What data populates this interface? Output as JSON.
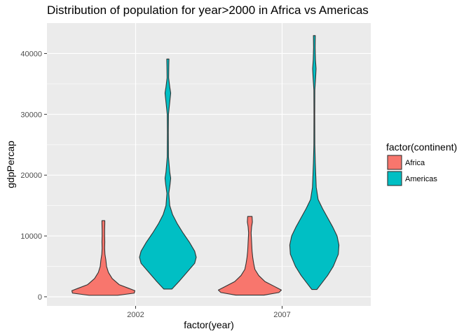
{
  "chart_data": {
    "type": "violin",
    "title": "Distribution of population for year>2000 in Africa vs Americas",
    "xlabel": "factor(year)",
    "ylabel": "gdpPercap",
    "categories": [
      "2002",
      "2007"
    ],
    "ylim": [
      -1500,
      45000
    ],
    "y_ticks": [
      0,
      10000,
      20000,
      30000,
      40000
    ],
    "y_tick_labels": [
      "0",
      "10000",
      "20000",
      "30000",
      "40000"
    ],
    "grid": true,
    "legend": {
      "title": "factor(continent)",
      "placement": "right",
      "items": [
        {
          "label": "Africa",
          "color": "#F8766D"
        },
        {
          "label": "Americas",
          "color": "#00BFC4"
        }
      ]
    },
    "series": [
      {
        "name": "Africa",
        "color": "#F8766D",
        "groups": [
          {
            "category": "2002",
            "range": [
              241,
              12522
            ],
            "density": [
              [
                241,
                0.45
              ],
              [
                600,
                0.98
              ],
              [
                1000,
                1.0
              ],
              [
                1400,
                0.8
              ],
              [
                2000,
                0.5
              ],
              [
                3000,
                0.28
              ],
              [
                4000,
                0.16
              ],
              [
                5000,
                0.1
              ],
              [
                6000,
                0.08
              ],
              [
                7000,
                0.05
              ],
              [
                8000,
                0.04
              ],
              [
                9000,
                0.045
              ],
              [
                10000,
                0.04
              ],
              [
                11000,
                0.04
              ],
              [
                12000,
                0.045
              ],
              [
                12522,
                0.045
              ]
            ]
          },
          {
            "category": "2007",
            "range": [
              278,
              13206
            ],
            "density": [
              [
                278,
                0.45
              ],
              [
                700,
                0.92
              ],
              [
                1100,
                1.0
              ],
              [
                1700,
                0.78
              ],
              [
                2500,
                0.48
              ],
              [
                3500,
                0.28
              ],
              [
                4500,
                0.16
              ],
              [
                5500,
                0.12
              ],
              [
                6500,
                0.09
              ],
              [
                7500,
                0.07
              ],
              [
                8500,
                0.06
              ],
              [
                9500,
                0.05
              ],
              [
                10500,
                0.04
              ],
              [
                11500,
                0.055
              ],
              [
                12300,
                0.08
              ],
              [
                13206,
                0.07
              ]
            ]
          }
        ]
      },
      {
        "name": "Americas",
        "color": "#00BFC4",
        "groups": [
          {
            "category": "2002",
            "range": [
              1270,
              39097
            ],
            "density": [
              [
                1270,
                0.13
              ],
              [
                2500,
                0.35
              ],
              [
                4000,
                0.6
              ],
              [
                5500,
                0.85
              ],
              [
                6500,
                0.9
              ],
              [
                7500,
                0.85
              ],
              [
                9000,
                0.68
              ],
              [
                10500,
                0.48
              ],
              [
                12000,
                0.3
              ],
              [
                13500,
                0.15
              ],
              [
                15000,
                0.06
              ],
              [
                17000,
                0.03
              ],
              [
                18500,
                0.07
              ],
              [
                19500,
                0.09
              ],
              [
                20500,
                0.06
              ],
              [
                23000,
                0.02
              ],
              [
                27000,
                0.015
              ],
              [
                30000,
                0.02
              ],
              [
                32500,
                0.07
              ],
              [
                33500,
                0.09
              ],
              [
                34500,
                0.06
              ],
              [
                36000,
                0.025
              ],
              [
                38000,
                0.03
              ],
              [
                39097,
                0.035
              ]
            ]
          },
          {
            "category": "2007",
            "range": [
              1202,
              42952
            ],
            "density": [
              [
                1202,
                0.08
              ],
              [
                2000,
                0.2
              ],
              [
                3500,
                0.42
              ],
              [
                5000,
                0.6
              ],
              [
                7000,
                0.76
              ],
              [
                8500,
                0.78
              ],
              [
                10000,
                0.72
              ],
              [
                11500,
                0.58
              ],
              [
                13000,
                0.42
              ],
              [
                14500,
                0.26
              ],
              [
                16000,
                0.12
              ],
              [
                18000,
                0.06
              ],
              [
                20000,
                0.045
              ],
              [
                22000,
                0.03
              ],
              [
                25000,
                0.015
              ],
              [
                30000,
                0.012
              ],
              [
                34000,
                0.015
              ],
              [
                36000,
                0.04
              ],
              [
                37500,
                0.055
              ],
              [
                39000,
                0.035
              ],
              [
                41000,
                0.025
              ],
              [
                42952,
                0.03
              ]
            ]
          }
        ]
      }
    ]
  }
}
